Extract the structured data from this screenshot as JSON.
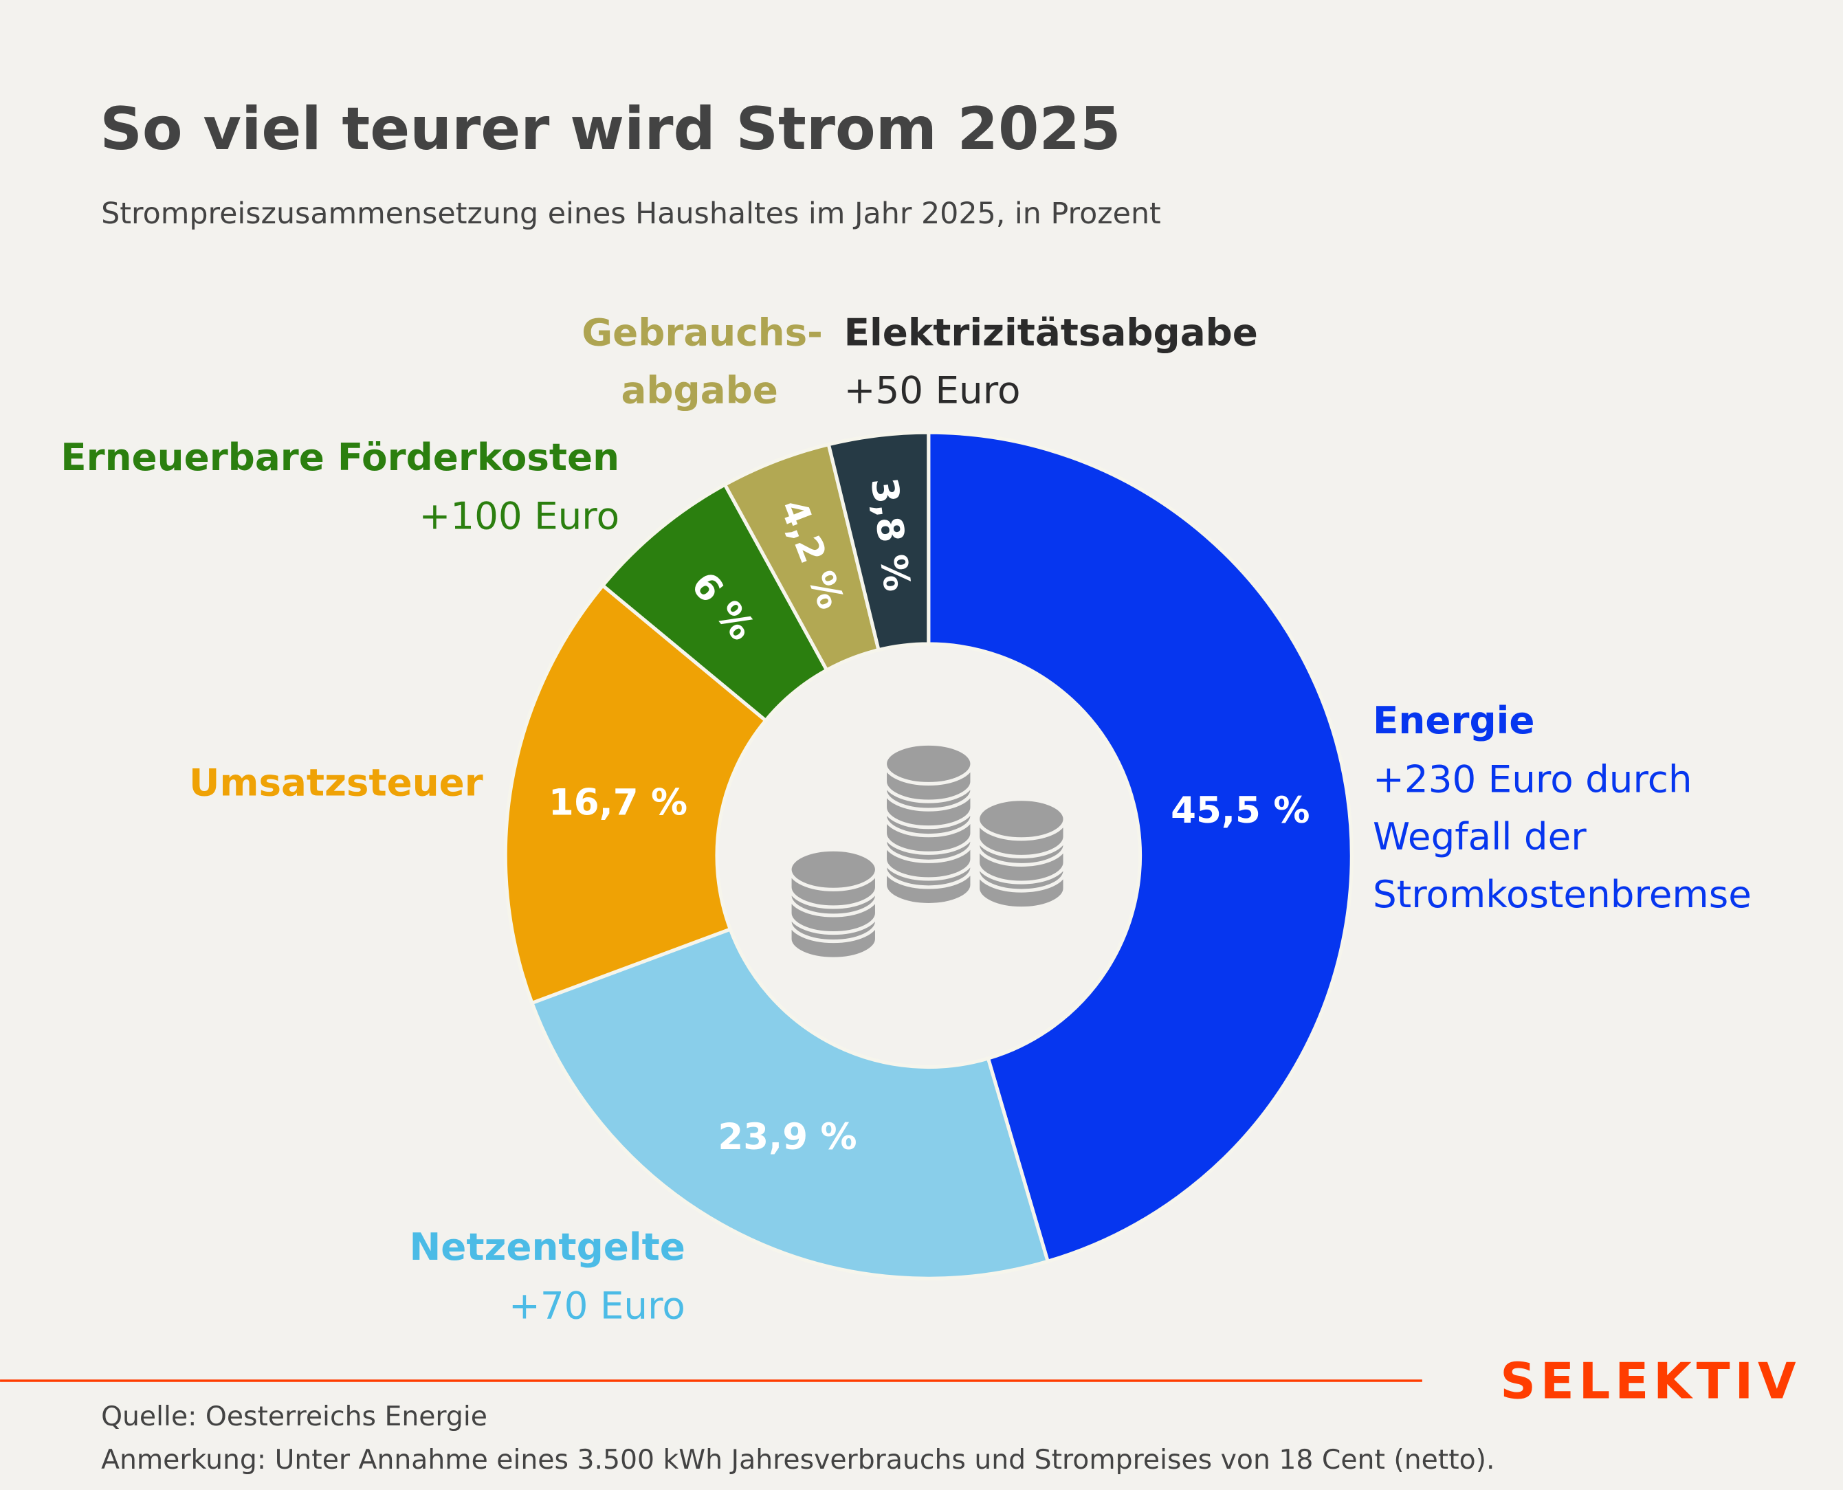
{
  "header": {
    "title": "So viel teurer wird Strom 2025",
    "subtitle": "Strompreiszusammensetzung eines Haushaltes im Jahr 2025, in Prozent"
  },
  "chart_data": {
    "type": "pie",
    "variant": "donut",
    "title": "So viel teurer wird Strom 2025",
    "unit": "%",
    "slices": [
      {
        "name": "Energie",
        "value": 45.5,
        "label": "45,5 %",
        "note_lines": [
          "+230 Euro durch",
          "Wegfall der",
          "Stromkostenbremse"
        ],
        "color": "#0636ef",
        "label_color": "#0636ef"
      },
      {
        "name": "Netzentgelte",
        "value": 23.9,
        "label": "23,9 %",
        "note_lines": [
          "+70 Euro"
        ],
        "color": "#89ceea",
        "label_color": "#4bbbe6"
      },
      {
        "name": "Umsatzsteuer",
        "value": 16.7,
        "label": "16,7 %",
        "note_lines": [],
        "color": "#efa205",
        "label_color": "#efa205"
      },
      {
        "name": "Erneuerbare Förderkosten",
        "value": 6,
        "label": "6 %",
        "note_lines": [
          "+100 Euro"
        ],
        "color": "#2b7f0f",
        "label_color": "#2b7f0f"
      },
      {
        "name": "Gebrauchs-|abgabe",
        "value": 4.2,
        "label": "4,2 %",
        "note_lines": [],
        "color": "#b2a853",
        "label_color": "#aea451"
      },
      {
        "name": "Elektrizitätsabgabe",
        "value": 3.8,
        "label": "3,8 %",
        "note_lines": [
          "+50 Euro"
        ],
        "color": "#263a45",
        "label_color": "#2b2b2b"
      }
    ]
  },
  "footer": {
    "brand": "SELEKTIV",
    "brand_color": "#ff3d00",
    "source": "Quelle: Oesterreichs Energie",
    "note": "Anmerkung: Unter Annahme eines 3.500 kWh Jahresverbrauchs und Strompreises von 18 Cent (netto)."
  }
}
